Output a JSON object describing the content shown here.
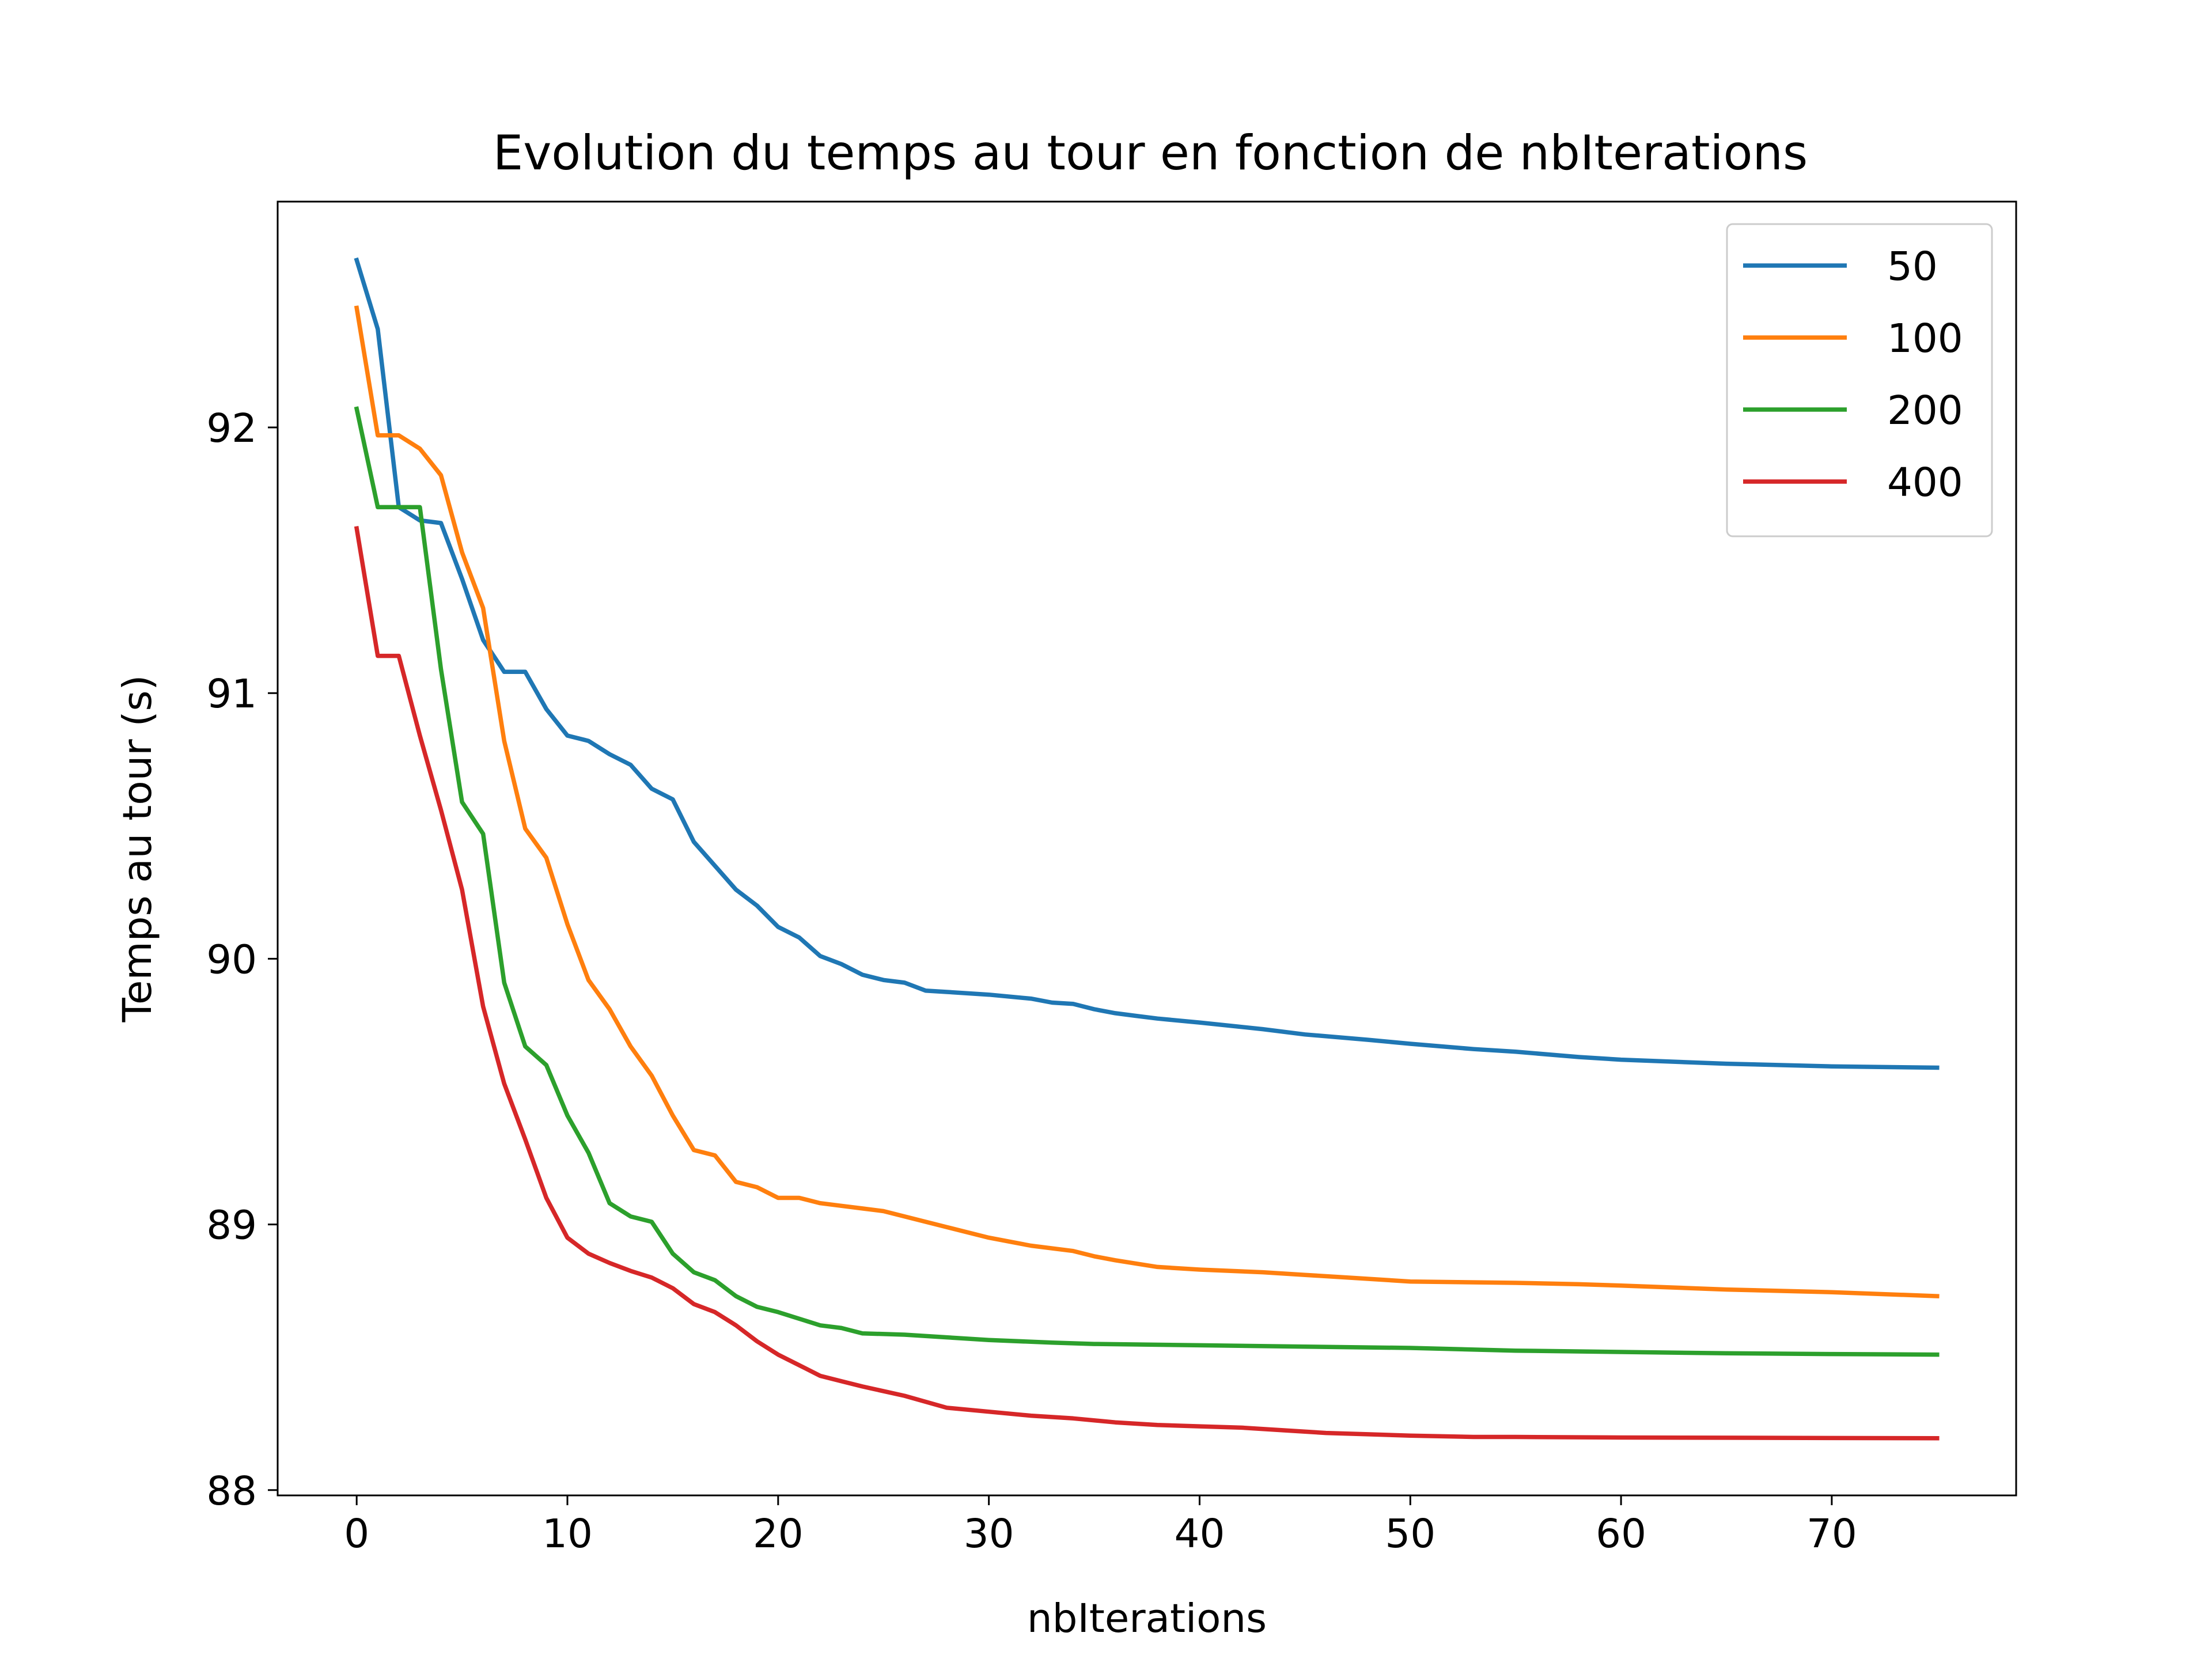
{
  "chart_data": {
    "type": "line",
    "title": "Evolution du temps au tour en fonction de nbIterations",
    "xlabel": "nbIterations",
    "ylabel": "Temps au tour (s)",
    "xlim": [
      -3.75,
      78.75
    ],
    "ylim": [
      87.98,
      92.85
    ],
    "xticks": [
      0,
      10,
      20,
      30,
      40,
      50,
      60,
      70
    ],
    "yticks": [
      88,
      89,
      90,
      91,
      92
    ],
    "legend_position": "top-right",
    "grid": false,
    "series": [
      {
        "name": "50",
        "color": "#1f77b4",
        "points": [
          [
            0,
            92.63
          ],
          [
            1,
            92.37
          ],
          [
            2,
            91.7
          ],
          [
            3,
            91.65
          ],
          [
            4,
            91.64
          ],
          [
            5,
            91.43
          ],
          [
            6,
            91.2
          ],
          [
            7,
            91.08
          ],
          [
            8,
            91.08
          ],
          [
            9,
            90.94
          ],
          [
            10,
            90.84
          ],
          [
            11,
            90.82
          ],
          [
            12,
            90.77
          ],
          [
            13,
            90.73
          ],
          [
            14,
            90.64
          ],
          [
            15,
            90.6
          ],
          [
            16,
            90.44
          ],
          [
            17,
            90.35
          ],
          [
            18,
            90.26
          ],
          [
            19,
            90.2
          ],
          [
            20,
            90.12
          ],
          [
            21,
            90.08
          ],
          [
            22,
            90.01
          ],
          [
            23,
            89.98
          ],
          [
            24,
            89.94
          ],
          [
            25,
            89.92
          ],
          [
            26,
            89.91
          ],
          [
            27,
            89.88
          ],
          [
            28,
            89.875
          ],
          [
            30,
            89.865
          ],
          [
            32,
            89.85
          ],
          [
            33,
            89.835
          ],
          [
            34,
            89.83
          ],
          [
            35,
            89.81
          ],
          [
            36,
            89.795
          ],
          [
            37,
            89.785
          ],
          [
            38,
            89.775
          ],
          [
            40,
            89.76
          ],
          [
            43,
            89.735
          ],
          [
            45,
            89.715
          ],
          [
            48,
            89.695
          ],
          [
            50,
            89.68
          ],
          [
            53,
            89.66
          ],
          [
            55,
            89.65
          ],
          [
            58,
            89.63
          ],
          [
            60,
            89.62
          ],
          [
            65,
            89.605
          ],
          [
            70,
            89.595
          ],
          [
            75,
            89.59
          ]
        ]
      },
      {
        "name": "100",
        "color": "#ff7f0e",
        "points": [
          [
            0,
            92.45
          ],
          [
            1,
            91.97
          ],
          [
            2,
            91.97
          ],
          [
            3,
            91.92
          ],
          [
            4,
            91.82
          ],
          [
            5,
            91.53
          ],
          [
            6,
            91.32
          ],
          [
            7,
            90.82
          ],
          [
            8,
            90.49
          ],
          [
            9,
            90.38
          ],
          [
            10,
            90.13
          ],
          [
            11,
            89.92
          ],
          [
            12,
            89.81
          ],
          [
            13,
            89.67
          ],
          [
            14,
            89.56
          ],
          [
            15,
            89.41
          ],
          [
            16,
            89.28
          ],
          [
            17,
            89.26
          ],
          [
            18,
            89.16
          ],
          [
            19,
            89.14
          ],
          [
            20,
            89.1
          ],
          [
            21,
            89.1
          ],
          [
            22,
            89.08
          ],
          [
            23,
            89.07
          ],
          [
            24,
            89.06
          ],
          [
            25,
            89.05
          ],
          [
            26,
            89.03
          ],
          [
            27,
            89.01
          ],
          [
            28,
            88.99
          ],
          [
            30,
            88.95
          ],
          [
            32,
            88.92
          ],
          [
            34,
            88.9
          ],
          [
            35,
            88.88
          ],
          [
            36,
            88.865
          ],
          [
            38,
            88.84
          ],
          [
            40,
            88.83
          ],
          [
            43,
            88.82
          ],
          [
            45,
            88.81
          ],
          [
            47,
            88.8
          ],
          [
            50,
            88.785
          ],
          [
            55,
            88.78
          ],
          [
            58,
            88.775
          ],
          [
            60,
            88.77
          ],
          [
            65,
            88.755
          ],
          [
            70,
            88.745
          ],
          [
            75,
            88.73
          ]
        ]
      },
      {
        "name": "200",
        "color": "#2ca02c",
        "points": [
          [
            0,
            92.07
          ],
          [
            1,
            91.7
          ],
          [
            2,
            91.7
          ],
          [
            3,
            91.7
          ],
          [
            4,
            91.09
          ],
          [
            5,
            90.59
          ],
          [
            6,
            90.47
          ],
          [
            7,
            89.91
          ],
          [
            8,
            89.67
          ],
          [
            9,
            89.6
          ],
          [
            10,
            89.41
          ],
          [
            11,
            89.27
          ],
          [
            12,
            89.08
          ],
          [
            13,
            89.03
          ],
          [
            14,
            89.01
          ],
          [
            15,
            88.89
          ],
          [
            16,
            88.82
          ],
          [
            17,
            88.79
          ],
          [
            18,
            88.73
          ],
          [
            19,
            88.69
          ],
          [
            20,
            88.67
          ],
          [
            21,
            88.645
          ],
          [
            22,
            88.62
          ],
          [
            23,
            88.61
          ],
          [
            24,
            88.59
          ],
          [
            26,
            88.585
          ],
          [
            28,
            88.575
          ],
          [
            30,
            88.565
          ],
          [
            33,
            88.555
          ],
          [
            35,
            88.55
          ],
          [
            40,
            88.545
          ],
          [
            45,
            88.54
          ],
          [
            50,
            88.535
          ],
          [
            55,
            88.525
          ],
          [
            60,
            88.52
          ],
          [
            65,
            88.515
          ],
          [
            70,
            88.512
          ],
          [
            75,
            88.51
          ]
        ]
      },
      {
        "name": "400",
        "color": "#d62728",
        "points": [
          [
            0,
            91.62
          ],
          [
            1,
            91.14
          ],
          [
            2,
            91.14
          ],
          [
            3,
            90.84
          ],
          [
            4,
            90.56
          ],
          [
            5,
            90.26
          ],
          [
            6,
            89.82
          ],
          [
            7,
            89.53
          ],
          [
            8,
            89.32
          ],
          [
            9,
            89.1
          ],
          [
            10,
            88.95
          ],
          [
            11,
            88.89
          ],
          [
            12,
            88.855
          ],
          [
            13,
            88.825
          ],
          [
            14,
            88.8
          ],
          [
            15,
            88.76
          ],
          [
            16,
            88.7
          ],
          [
            17,
            88.67
          ],
          [
            18,
            88.62
          ],
          [
            19,
            88.56
          ],
          [
            20,
            88.51
          ],
          [
            21,
            88.47
          ],
          [
            22,
            88.43
          ],
          [
            23,
            88.41
          ],
          [
            24,
            88.39
          ],
          [
            26,
            88.355
          ],
          [
            28,
            88.31
          ],
          [
            30,
            88.295
          ],
          [
            32,
            88.28
          ],
          [
            34,
            88.27
          ],
          [
            36,
            88.255
          ],
          [
            38,
            88.245
          ],
          [
            40,
            88.24
          ],
          [
            42,
            88.235
          ],
          [
            44,
            88.225
          ],
          [
            46,
            88.215
          ],
          [
            48,
            88.21
          ],
          [
            50,
            88.205
          ],
          [
            53,
            88.2
          ],
          [
            55,
            88.2
          ],
          [
            60,
            88.198
          ],
          [
            65,
            88.197
          ],
          [
            70,
            88.196
          ],
          [
            75,
            88.195
          ]
        ]
      }
    ]
  }
}
